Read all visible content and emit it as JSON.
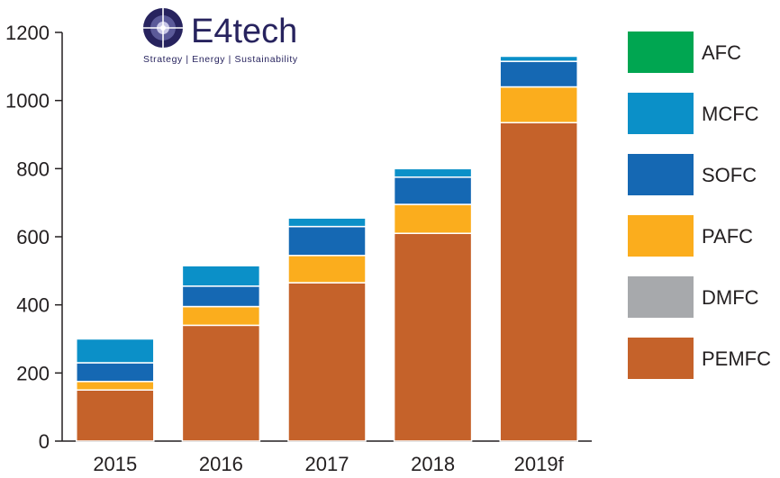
{
  "logo": {
    "name": "E4tech",
    "tagline": "Strategy | Energy | Sustainability"
  },
  "chart_data": {
    "type": "bar",
    "stacked": true,
    "categories": [
      "2015",
      "2016",
      "2017",
      "2018",
      "2019f"
    ],
    "ylim": [
      0,
      1200
    ],
    "yticks": [
      0,
      200,
      400,
      600,
      800,
      1000,
      1200
    ],
    "title": "",
    "xlabel": "",
    "ylabel": "",
    "grid": false,
    "legend_position": "right",
    "series": [
      {
        "name": "PEMFC",
        "color": "#c5622a",
        "values": [
          150,
          340,
          465,
          610,
          935
        ]
      },
      {
        "name": "DMFC",
        "color": "#a7a9ac",
        "values": [
          0,
          0,
          0,
          0,
          0
        ]
      },
      {
        "name": "PAFC",
        "color": "#fbad1d",
        "values": [
          25,
          55,
          80,
          85,
          105
        ]
      },
      {
        "name": "SOFC",
        "color": "#1568b3",
        "values": [
          55,
          60,
          85,
          80,
          75
        ]
      },
      {
        "name": "MCFC",
        "color": "#0b90c8",
        "values": [
          70,
          60,
          25,
          25,
          15
        ]
      },
      {
        "name": "AFC",
        "color": "#00a651",
        "values": [
          0,
          0,
          0,
          0,
          0
        ]
      }
    ],
    "legend_order": [
      "AFC",
      "MCFC",
      "SOFC",
      "PAFC",
      "DMFC",
      "PEMFC"
    ]
  }
}
